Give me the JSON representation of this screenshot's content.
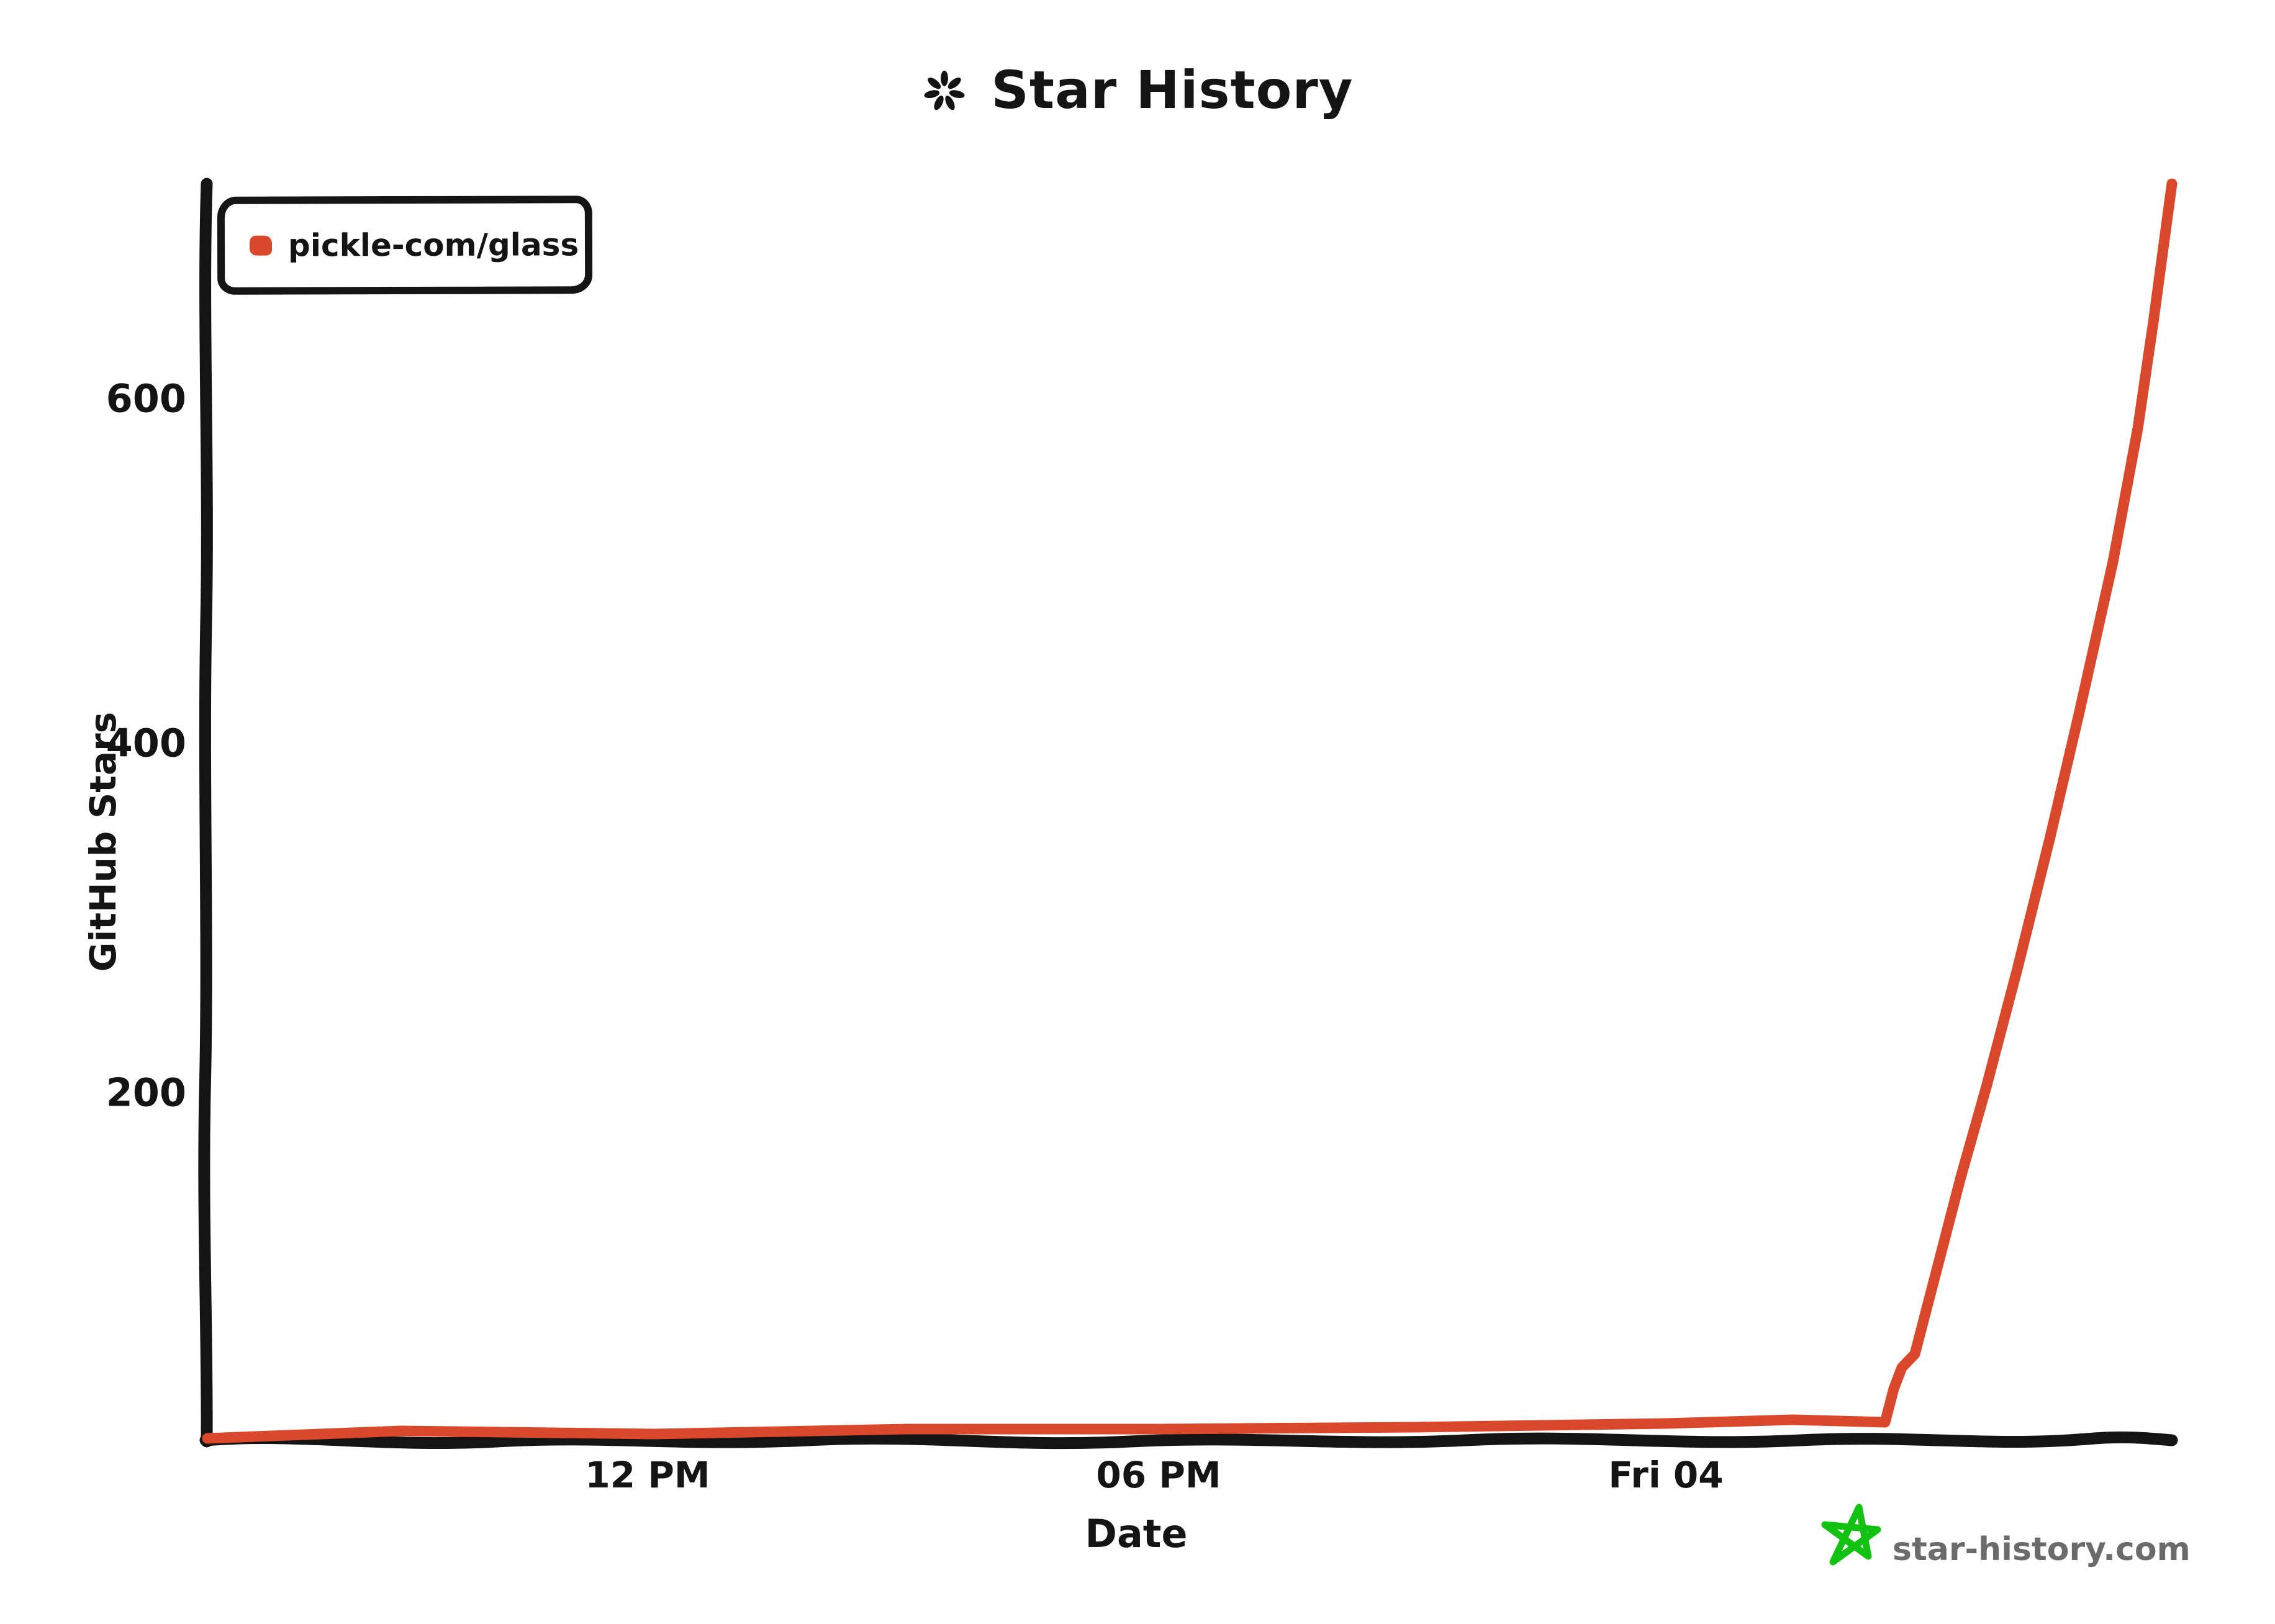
{
  "title": {
    "icon": "seven-petal-asterisk",
    "text": "Star History"
  },
  "legend": {
    "label": "pickle-com/glass"
  },
  "y_axis": {
    "title": "GitHub Stars",
    "ticks": {
      "t600": "600",
      "t400": "400",
      "t200": "200"
    }
  },
  "x_axis": {
    "title": "Date",
    "ticks": {
      "t1": "12 PM",
      "t2": "06 PM",
      "t3": "Fri 04"
    }
  },
  "watermark": {
    "text": "star-history.com"
  },
  "colors": {
    "series": "#D9482B",
    "axis": "#141414",
    "watermark_text": "#6B6B6B",
    "watermark_star": "#12C112"
  },
  "chart_data": {
    "type": "line",
    "title": "Star History",
    "xlabel": "Date",
    "ylabel": "GitHub Stars",
    "x_ticks": [
      "12 PM",
      "06 PM",
      "Fri 04"
    ],
    "y_ticks": [
      200,
      400,
      600
    ],
    "ylim": [
      0,
      730
    ],
    "grid": false,
    "legend_position": "top-left",
    "style": "hand-drawn (xkcd-like)",
    "annotation": "Stars stay near 0 from Thu ~7 AM through Fri ~2:40 AM, then spike sharply to ~720 by Fri ~6 AM",
    "series": [
      {
        "name": "pickle-com/glass",
        "color": "#D9482B",
        "x_hours_from_fri04": [
          -17.3,
          -15.0,
          -12.0,
          -9.0,
          -6.0,
          -3.0,
          0.0,
          1.5,
          2.6,
          2.7,
          2.8,
          2.95,
          3.2,
          3.5,
          3.8,
          4.17,
          4.55,
          4.9,
          5.3,
          5.6,
          5.78,
          6.0
        ],
        "stars": [
          0,
          2,
          3,
          4,
          5,
          6,
          7,
          8,
          9,
          28,
          40,
          48,
          95,
          150,
          202,
          270,
          345,
          417,
          505,
          582,
          643,
          723
        ]
      }
    ]
  }
}
